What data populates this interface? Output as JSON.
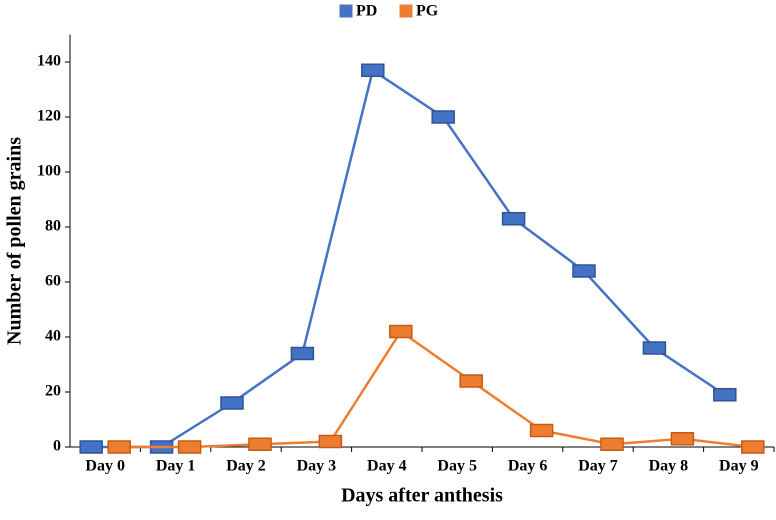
{
  "chart_data": {
    "type": "line",
    "x_label": "Days after anthesis",
    "y_label": "Number of pollen grains",
    "categories": [
      "Day 0",
      "Day 1",
      "Day 2",
      "Day 3",
      "Day 4",
      "Day 5",
      "Day 6",
      "Day 7",
      "Day 8",
      "Day 9"
    ],
    "series": [
      {
        "name": "PD",
        "color": "#4472c4",
        "values": [
          0,
          0,
          16,
          34,
          137,
          120,
          83,
          64,
          36,
          19
        ]
      },
      {
        "name": "PG",
        "color": "#ed7d31",
        "values": [
          0,
          0,
          1,
          2,
          42,
          24,
          6,
          1,
          3,
          0
        ]
      }
    ],
    "ylim": [
      0,
      150
    ],
    "yticks": [
      0,
      20,
      40,
      60,
      80,
      100,
      120,
      140
    ],
    "grid": false,
    "legend": "top"
  }
}
